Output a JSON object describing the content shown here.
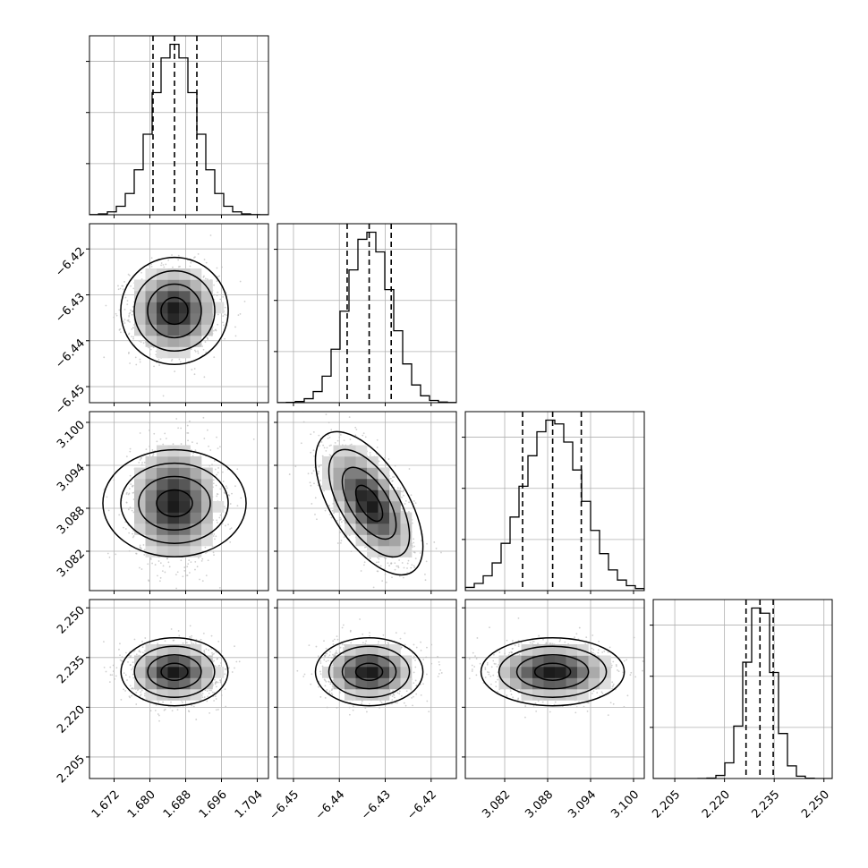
{
  "chart_data": {
    "type": "corner",
    "parameters": [
      {
        "range": [
          1.6665,
          1.7065
        ],
        "ticks": [
          1.672,
          1.68,
          1.688,
          1.696,
          1.704
        ],
        "tick_labels": [
          "1.672",
          "1.680",
          "1.688",
          "1.696",
          "1.704"
        ],
        "median": 1.6855,
        "q16": 1.6807,
        "q84": 1.6905,
        "sigma": 0.0049
      },
      {
        "range": [
          -6.4535,
          -6.4145
        ],
        "ticks": [
          -6.45,
          -6.44,
          -6.43,
          -6.42
        ],
        "tick_labels": [
          "−6.45",
          "−6.44",
          "−6.43",
          "−6.42"
        ],
        "median": -6.4335,
        "q16": -6.4383,
        "q84": -6.4287,
        "sigma": 0.0048
      },
      {
        "range": [
          3.0765,
          3.1015
        ],
        "ticks": [
          3.082,
          3.088,
          3.094,
          3.1
        ],
        "tick_labels": [
          "3.082",
          "3.088",
          "3.094",
          "3.100"
        ],
        "median": 3.0887,
        "q16": 3.0845,
        "q84": 3.0927,
        "sigma": 0.0041
      },
      {
        "range": [
          2.1985,
          2.2525
        ],
        "ticks": [
          2.205,
          2.22,
          2.235,
          2.25
        ],
        "tick_labels": [
          "2.205",
          "2.220",
          "2.235",
          "2.250"
        ],
        "median": 2.2307,
        "q16": 2.2265,
        "q84": 2.2347,
        "sigma": 0.0042
      }
    ],
    "correlations": {
      "1-0": 0.0,
      "2-0": 0.0,
      "2-1": -0.6,
      "3-0": 0.0,
      "3-1": 0.0,
      "3-2": 0.0
    },
    "histogram_bins": 20,
    "contour_levels_sigma": [
      0.5,
      1.0,
      1.5,
      2.0
    ],
    "quantile_lines": "dashed",
    "grid": true
  }
}
